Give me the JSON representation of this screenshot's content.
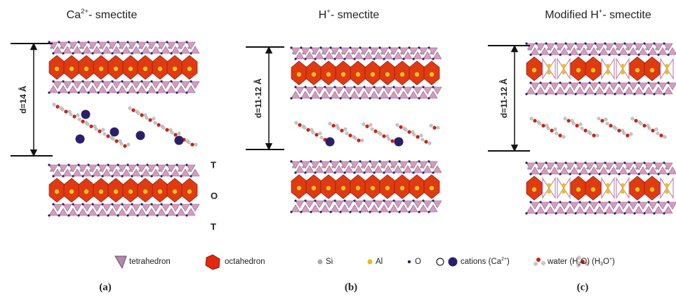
{
  "panels": [
    {
      "title": [
        {
          "text": "Ca"
        },
        {
          "sup": "2+"
        },
        {
          "text": "- smectite"
        }
      ],
      "spacing": "d=14 Å",
      "layer_labels": [
        "T",
        "O",
        "T"
      ],
      "caption": "(a)"
    },
    {
      "title": [
        {
          "text": "H"
        },
        {
          "sup": "+"
        },
        {
          "text": "- smectite"
        }
      ],
      "spacing": "d=11-12 Å",
      "caption": "(b)"
    },
    {
      "title": [
        {
          "text": "Modified H"
        },
        {
          "sup": "+"
        },
        {
          "text": "- smectite"
        }
      ],
      "spacing": "d=11-12 Å",
      "caption": "(c)"
    }
  ],
  "legend": [
    {
      "label": [
        {
          "text": "tetrahedron"
        }
      ]
    },
    {
      "label": [
        {
          "text": "octahedron"
        }
      ]
    },
    {
      "label": [
        {
          "text": "Si"
        }
      ]
    },
    {
      "label": [
        {
          "text": "Al"
        }
      ]
    },
    {
      "label": [
        {
          "text": "O"
        }
      ]
    },
    {
      "label": [
        {
          "text": "cations (Ca"
        },
        {
          "sup": "2+"
        },
        {
          "text": ")"
        }
      ]
    },
    {
      "label": [
        {
          "text": "water (H"
        },
        {
          "sub": "2"
        },
        {
          "text": "O)"
        }
      ]
    },
    {
      "label": [
        {
          "text": "(H"
        },
        {
          "sub": "3"
        },
        {
          "text": "O"
        },
        {
          "sup": "+"
        },
        {
          "text": ")"
        }
      ]
    }
  ]
}
